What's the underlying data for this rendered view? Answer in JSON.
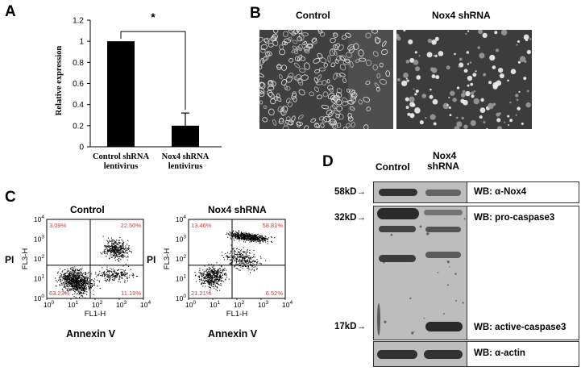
{
  "panels": {
    "a": {
      "letter": "A",
      "significance": "*",
      "chart_data": {
        "type": "bar",
        "categories": [
          "Control shRNA lentivirus",
          "Nox4 shRNA lentivirus"
        ],
        "category_lines": [
          [
            "Control shRNA",
            "lentivirus"
          ],
          [
            "Nox4 shRNA",
            "lentivirus"
          ]
        ],
        "values": [
          1.0,
          0.2
        ],
        "error": [
          0.0,
          0.12
        ],
        "ylabel": "Relative expression",
        "xlabel": "",
        "ylim": [
          0,
          1.2
        ],
        "yticks": [
          "0",
          "0.2",
          "0.4",
          "0.6",
          "0.8",
          "1",
          "1.2"
        ],
        "bar_color": "#000000"
      }
    },
    "b": {
      "letter": "B",
      "titles": [
        "Control",
        "Nox4 shRNA"
      ]
    },
    "c": {
      "letter": "C",
      "plots": [
        {
          "title": "Control",
          "y_label": "PI",
          "y_axis": "FL3-H",
          "x_axis": "FL1-H",
          "x_label": "Annexin V",
          "quadrants": {
            "ul": "3.09%",
            "ur": "22.50%",
            "ll": "63.23%",
            "lr": "11.19%"
          }
        },
        {
          "title": "Nox4 shRNA",
          "y_label": "PI",
          "y_axis": "FL3-H",
          "x_axis": "FL1-H",
          "x_label": "Annexin V",
          "quadrants": {
            "ul": "13.46%",
            "ur": "58.81%",
            "ll": "21.21%",
            "lr": "6.52%"
          }
        }
      ],
      "tick_base": "10",
      "tick_exps": [
        "0",
        "1",
        "2",
        "3",
        "4"
      ]
    },
    "d": {
      "letter": "D",
      "lane_labels": [
        "Control",
        "Nox4",
        "shRNA"
      ],
      "markers": [
        "58kD",
        "32kD",
        "17kD"
      ],
      "wb_labels": [
        "WB: α-Nox4",
        "WB: pro-caspase3",
        "WB: active-caspase3",
        "WB: α-actin"
      ]
    }
  }
}
